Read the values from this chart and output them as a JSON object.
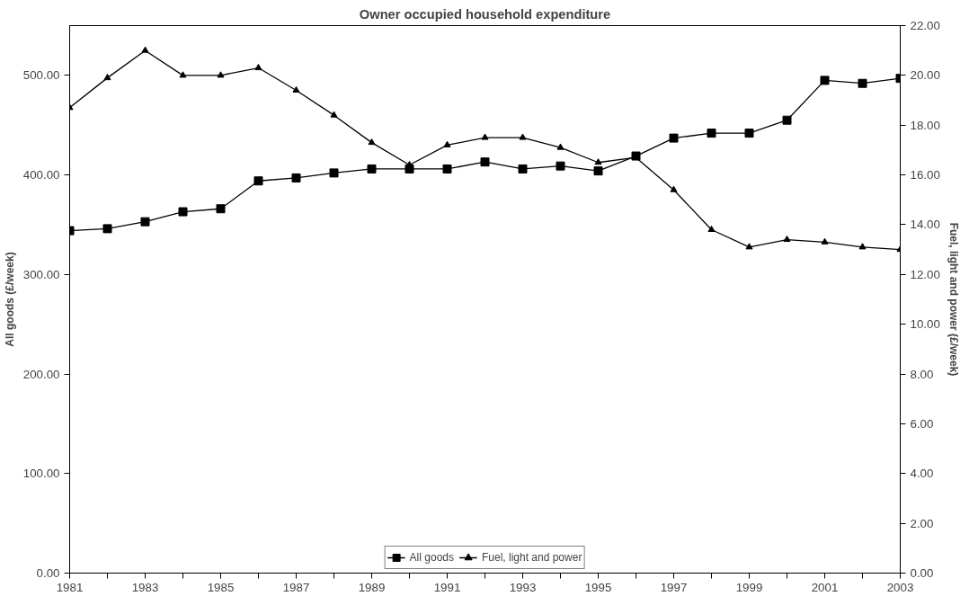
{
  "chart_data": {
    "type": "line",
    "title": "Owner occupied household expenditure",
    "ylabel": "All goods (£/week)",
    "y2label": "Fuel, light and power (£/week)",
    "x": [
      1981,
      1982,
      1983,
      1984,
      1985,
      1986,
      1987,
      1988,
      1989,
      1990,
      1991,
      1992,
      1993,
      1994,
      1995,
      1996,
      1997,
      1998,
      1999,
      2000,
      2001,
      2002,
      2003
    ],
    "series": [
      {
        "name": "All goods",
        "color": "#000000",
        "marker": "square",
        "values": [
          344,
          346,
          353,
          363,
          366,
          394,
          397,
          402,
          406,
          406,
          406,
          413,
          406,
          409,
          404,
          419,
          437,
          442,
          442,
          455,
          495,
          492,
          497
        ]
      },
      {
        "name": "Fuel, light and power",
        "color": "#000000",
        "marker": "triangle",
        "axis": "y2",
        "values": [
          18.7,
          19.9,
          21.0,
          20.0,
          20.0,
          20.3,
          19.4,
          18.4,
          17.3,
          16.4,
          17.2,
          17.5,
          17.5,
          17.1,
          16.5,
          16.7,
          15.4,
          13.8,
          13.1,
          13.4,
          13.3,
          13.1,
          13.0
        ]
      }
    ],
    "xlim": [
      1981,
      2003
    ],
    "xticks": [
      1981,
      {
        "value": 1982,
        "label": null
      },
      1983,
      {
        "value": 1984,
        "label": null
      },
      1985,
      {
        "value": 1986,
        "label": null
      },
      1987,
      {
        "value": 1988,
        "label": null
      },
      1989,
      {
        "value": 1990,
        "label": null
      },
      1991,
      {
        "value": 1992,
        "label": null
      },
      1993,
      {
        "value": 1994,
        "label": null
      },
      1995,
      {
        "value": 1996,
        "label": null
      },
      1997,
      {
        "value": 1998,
        "label": null
      },
      1999,
      {
        "value": 2000,
        "label": null
      },
      2001,
      {
        "value": 2002,
        "label": null
      },
      2003
    ],
    "ylim": [
      0,
      550
    ],
    "yticks": [
      {
        "value": 0,
        "label": "0.00"
      },
      {
        "value": 100,
        "label": "100.00"
      },
      {
        "value": 200,
        "label": "200.00"
      },
      {
        "value": 300,
        "label": "300.00"
      },
      {
        "value": 400,
        "label": "400.00"
      },
      {
        "value": 500,
        "label": "500.00"
      }
    ],
    "y2lim": [
      0,
      22
    ],
    "y2ticks": [
      {
        "value": 0,
        "label": "0.00"
      },
      {
        "value": 2,
        "label": "2.00"
      },
      {
        "value": 4,
        "label": "4.00"
      },
      {
        "value": 6,
        "label": "6.00"
      },
      {
        "value": 8,
        "label": "8.00"
      },
      {
        "value": 10,
        "label": "10.00"
      },
      {
        "value": 12,
        "label": "12.00"
      },
      {
        "value": 14,
        "label": "14.00"
      },
      {
        "value": 16,
        "label": "16.00"
      },
      {
        "value": 18,
        "label": "18.00"
      },
      {
        "value": 20,
        "label": "20.00"
      },
      {
        "value": 22,
        "label": "22.00"
      }
    ],
    "grid": false,
    "legend": "bottom",
    "line_style": "solid"
  }
}
